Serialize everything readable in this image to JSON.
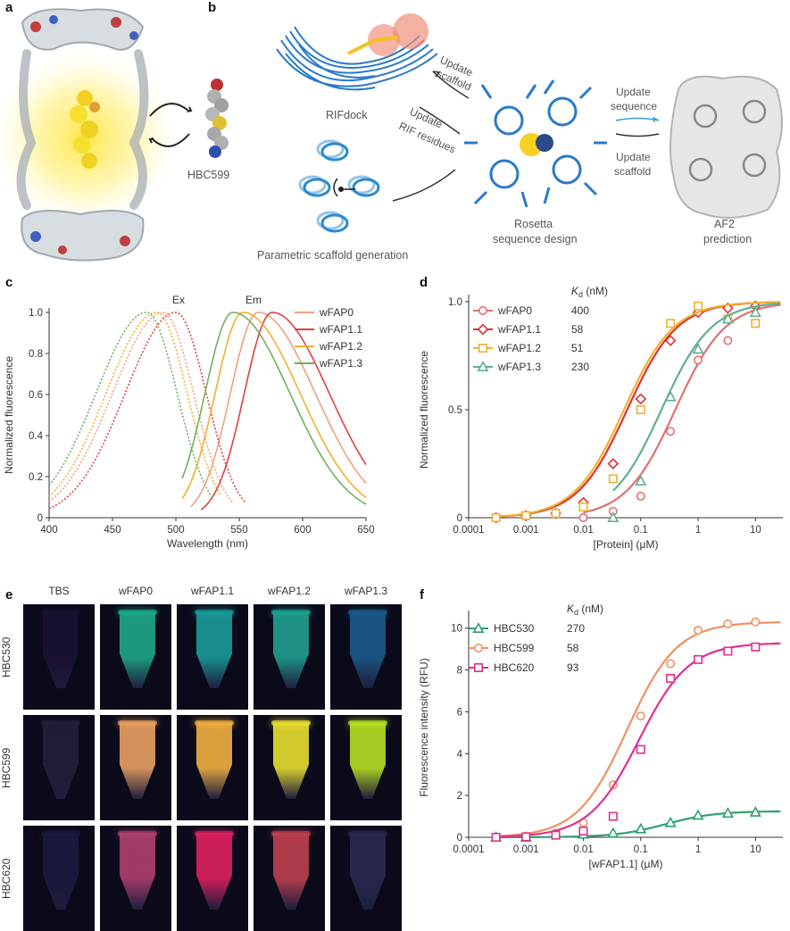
{
  "panels": {
    "a": {
      "label": "a",
      "molecule_label": "HBC599"
    },
    "b": {
      "label": "b",
      "labels": {
        "rifdock": "RIFdock",
        "update_scaffold": [
          "Update",
          "scaffold"
        ],
        "update_rif": [
          "Update",
          "RIF residues"
        ],
        "parametric": "Parametric scaffold generation",
        "rosetta": [
          "Rosetta",
          "sequence design"
        ],
        "update_sequence": [
          "Update",
          "sequence"
        ],
        "update_scaffold2": [
          "Update",
          "scaffold"
        ],
        "af2": [
          "AF2",
          "prediction"
        ]
      }
    },
    "c": {
      "label": "c"
    },
    "d": {
      "label": "d"
    },
    "e": {
      "label": "e",
      "columns": [
        "TBS",
        "wFAP0",
        "wFAP1.1",
        "wFAP1.2",
        "wFAP1.3"
      ],
      "rows": [
        "HBC530",
        "HBC599",
        "HBC620"
      ],
      "tube_colors": [
        [
          "#1a1030",
          "#1fa88a",
          "#1a9a9a",
          "#1fa090",
          "#1a5a8a"
        ],
        [
          "#20203a",
          "#e8a060",
          "#f0b040",
          "#e8e030",
          "#b8e020"
        ],
        [
          "#1a1a40",
          "#b04070",
          "#e02060",
          "#c04050",
          "#2a2a50"
        ]
      ]
    },
    "f": {
      "label": "f"
    }
  },
  "chart_data": [
    {
      "id": "c",
      "type": "line",
      "xlabel": "Wavelength (nm)",
      "ylabel": "Normalized fluorescence",
      "xlim": [
        400,
        650
      ],
      "ylim": [
        0,
        1.0
      ],
      "xticks": [
        "400",
        "450",
        "500",
        "550",
        "600",
        "650"
      ],
      "yticks": [
        "0",
        "0.2",
        "0.4",
        "0.6",
        "0.8",
        "1.0"
      ],
      "annotations": [
        "Ex",
        "Em"
      ],
      "series": [
        {
          "name": "wFAP0",
          "color": "#f0a080",
          "ex_peak": 490,
          "ex_range": [
            400,
            545
          ],
          "em_peak": 565,
          "em_range": [
            512,
            650
          ]
        },
        {
          "name": "wFAP1.1",
          "color": "#e04040",
          "ex_peak": 500,
          "ex_range": [
            400,
            555
          ],
          "em_peak": 576,
          "em_range": [
            520,
            650
          ]
        },
        {
          "name": "wFAP1.2",
          "color": "#f0b030",
          "ex_peak": 485,
          "ex_range": [
            400,
            535
          ],
          "em_peak": 553,
          "em_range": [
            505,
            650
          ]
        },
        {
          "name": "wFAP1.3",
          "color": "#70b060",
          "ex_peak": 477,
          "ex_range": [
            400,
            530
          ],
          "em_peak": 545,
          "em_range": [
            505,
            650
          ]
        }
      ]
    },
    {
      "id": "d",
      "type": "scatter",
      "xlabel": "[Protein] (μM)",
      "ylabel": "Normalized fluorescence",
      "xscale": "log",
      "xlim": [
        0.0001,
        30
      ],
      "ylim": [
        0,
        1.0
      ],
      "xticks": [
        "0.0001",
        "0.001",
        "0.01",
        "0.1",
        "1",
        "10"
      ],
      "yticks": [
        "0",
        "0.5",
        "1.0"
      ],
      "legend_header": [
        "K",
        "d",
        " (nM)"
      ],
      "series": [
        {
          "name": "wFAP0",
          "kd": "400",
          "kd_uM": 0.4,
          "color": "#e07070",
          "marker": "circle",
          "x": [
            0.01,
            0.033,
            0.1,
            0.33,
            1,
            3.3
          ],
          "y": [
            0.0,
            0.03,
            0.1,
            0.4,
            0.73,
            0.82
          ]
        },
        {
          "name": "wFAP1.1",
          "kd": "58",
          "kd_uM": 0.058,
          "color": "#e03030",
          "marker": "diamond",
          "x": [
            0.0003,
            0.001,
            0.0033,
            0.01,
            0.033,
            0.1,
            0.33,
            1,
            3.3,
            10
          ],
          "y": [
            0.0,
            0.01,
            0.02,
            0.07,
            0.25,
            0.55,
            0.82,
            0.95,
            0.97,
            0.98
          ]
        },
        {
          "name": "wFAP1.2",
          "kd": "51",
          "kd_uM": 0.051,
          "color": "#f0b030",
          "marker": "square",
          "x": [
            0.0003,
            0.001,
            0.0033,
            0.01,
            0.033,
            0.1,
            0.33,
            1,
            3.3,
            10
          ],
          "y": [
            0.0,
            0.01,
            0.02,
            0.05,
            0.18,
            0.5,
            0.9,
            0.98,
            0.92,
            0.9
          ]
        },
        {
          "name": "wFAP1.3",
          "kd": "230",
          "kd_uM": 0.23,
          "color": "#60b090",
          "marker": "triangle",
          "x": [
            0.033,
            0.1,
            0.33,
            1,
            3.3,
            10
          ],
          "y": [
            0.0,
            0.17,
            0.56,
            0.78,
            0.92,
            0.95
          ]
        }
      ]
    },
    {
      "id": "f",
      "type": "scatter",
      "xlabel": "[wFAP1.1] (μM)",
      "ylabel": "Fluorescence intensity (RFU)",
      "xscale": "log",
      "xlim": [
        0.0001,
        30
      ],
      "ylim": [
        0,
        10.5
      ],
      "xticks": [
        "0.0001",
        "0.001",
        "0.01",
        "0.1",
        "1",
        "10"
      ],
      "yticks": [
        "0",
        "2",
        "4",
        "6",
        "8",
        "10"
      ],
      "legend_header": [
        "K",
        "d",
        " (nM)"
      ],
      "series": [
        {
          "name": "HBC530",
          "kd": "270",
          "kd_uM": 0.27,
          "max": 1.25,
          "color": "#30a070",
          "marker": "triangle",
          "x": [
            0.0003,
            0.001,
            0.01,
            0.033,
            0.1,
            0.33,
            1,
            3.3,
            10
          ],
          "y": [
            0.0,
            0.0,
            0.15,
            0.2,
            0.4,
            0.7,
            1.05,
            1.15,
            1.2
          ]
        },
        {
          "name": "HBC599",
          "kd": "58",
          "kd_uM": 0.058,
          "max": 10.3,
          "color": "#f09060",
          "marker": "circle",
          "x": [
            0.0003,
            0.001,
            0.0033,
            0.01,
            0.033,
            0.1,
            0.33,
            1,
            3.3,
            10
          ],
          "y": [
            0.0,
            0.05,
            0.2,
            0.7,
            2.5,
            5.8,
            8.3,
            9.9,
            10.2,
            10.3
          ]
        },
        {
          "name": "HBC620",
          "kd": "93",
          "kd_uM": 0.093,
          "max": 9.3,
          "color": "#e03090",
          "marker": "square",
          "x": [
            0.0003,
            0.001,
            0.0033,
            0.01,
            0.033,
            0.1,
            0.33,
            1,
            3.3,
            10
          ],
          "y": [
            0.0,
            0.02,
            0.1,
            0.3,
            1.0,
            4.2,
            7.6,
            8.5,
            8.9,
            9.1
          ]
        }
      ]
    }
  ]
}
